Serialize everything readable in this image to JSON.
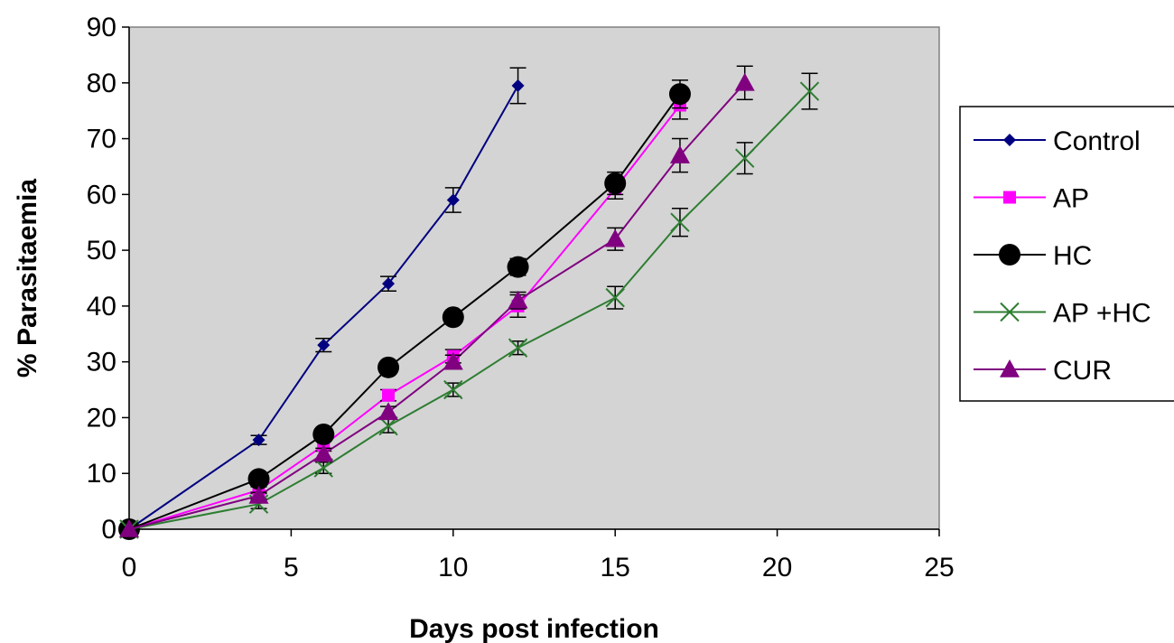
{
  "chart_data": {
    "type": "line",
    "title": "",
    "xlabel": "Days post infection",
    "ylabel": "% Parasitaemia",
    "xlim": [
      0,
      25
    ],
    "ylim": [
      0,
      90
    ],
    "xticks": [
      0,
      5,
      10,
      15,
      20,
      25
    ],
    "yticks": [
      0,
      10,
      20,
      30,
      40,
      50,
      60,
      70,
      80,
      90
    ],
    "grid": false,
    "plot_background": "#d4d4d4",
    "legend": "right",
    "series": [
      {
        "name": "Control",
        "color": "#000080",
        "marker": "diamond",
        "x": [
          0,
          4,
          6,
          8,
          10,
          12
        ],
        "y": [
          0,
          16,
          33,
          44,
          59,
          79.5
        ],
        "err": [
          0,
          0.8,
          1.2,
          1.3,
          2.2,
          3.2
        ]
      },
      {
        "name": "AP",
        "color": "#ff00ff",
        "marker": "square",
        "x": [
          0,
          4,
          6,
          8,
          10,
          12,
          15,
          17
        ],
        "y": [
          0,
          7,
          15,
          24,
          31,
          40,
          61,
          76
        ],
        "err": [
          0,
          0.6,
          1,
          1,
          1.2,
          2,
          1.8,
          2.5
        ]
      },
      {
        "name": "HC",
        "color": "#000000",
        "marker": "circle",
        "x": [
          0,
          4,
          6,
          8,
          10,
          12,
          15,
          17
        ],
        "y": [
          0,
          9,
          17,
          29,
          38,
          47,
          62,
          78
        ],
        "err": [
          0,
          0.8,
          1,
          1,
          1,
          1.5,
          2,
          2.5
        ]
      },
      {
        "name": "AP +HC",
        "color": "#2e7d32",
        "marker": "x",
        "x": [
          0,
          4,
          6,
          8,
          10,
          12,
          15,
          17,
          19,
          21
        ],
        "y": [
          0,
          4.5,
          11,
          18.5,
          25,
          32.5,
          41.5,
          55,
          66.5,
          78.5
        ],
        "err": [
          0,
          0.8,
          1,
          1.2,
          1.2,
          1.2,
          2,
          2.5,
          2.8,
          3.2
        ]
      },
      {
        "name": "CUR",
        "color": "#800080",
        "marker": "triangle",
        "x": [
          0,
          4,
          6,
          8,
          10,
          12,
          15,
          17,
          19
        ],
        "y": [
          0,
          6,
          13.5,
          21,
          30,
          41,
          52,
          67,
          80
        ],
        "err": [
          0,
          0.6,
          1,
          1,
          1.2,
          1.5,
          2,
          3,
          3
        ]
      }
    ]
  }
}
